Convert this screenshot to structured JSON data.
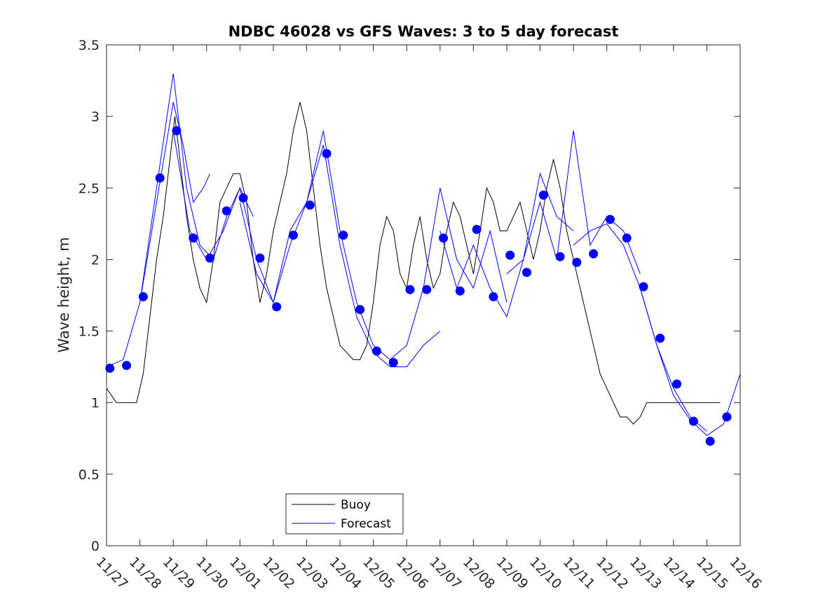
{
  "chart_data": {
    "type": "line",
    "title": "NDBC 46028 vs GFS Waves: 3 to 5 day forecast",
    "xlabel": "",
    "ylabel": "Wave height, m",
    "xlim": [
      0,
      19
    ],
    "ylim": [
      0,
      3.5
    ],
    "yticks": [
      0,
      0.5,
      1,
      1.5,
      2,
      2.5,
      3,
      3.5
    ],
    "ytick_labels": [
      "0",
      "0.5",
      "1",
      "1.5",
      "2",
      "2.5",
      "3",
      "3.5"
    ],
    "xticks": [
      0,
      1,
      2,
      3,
      4,
      5,
      6,
      7,
      8,
      9,
      10,
      11,
      12,
      13,
      14,
      15,
      16,
      17,
      18,
      19
    ],
    "xtick_labels": [
      "11/27",
      "11/28",
      "11/29",
      "11/30",
      "12/01",
      "12/02",
      "12/03",
      "12/04",
      "12/05",
      "12/06",
      "12/07",
      "12/08",
      "12/09",
      "12/10",
      "12/11",
      "12/12",
      "12/13",
      "12/14",
      "12/15",
      "12/16"
    ],
    "legend": {
      "position": "bottom-center",
      "entries": [
        {
          "label": "Buoy",
          "color": "#000000"
        },
        {
          "label": "Forecast",
          "color": "#0000ff"
        }
      ]
    },
    "colors": {
      "buoy": "#000000",
      "forecast": "#0000ff",
      "markers": "#0000ff"
    },
    "series": [
      {
        "name": "Buoy",
        "x": [
          0,
          0.3,
          0.6,
          0.9,
          1.1,
          1.3,
          1.5,
          1.7,
          1.9,
          2.05,
          2.2,
          2.4,
          2.6,
          2.8,
          3.0,
          3.2,
          3.4,
          3.6,
          3.8,
          4.0,
          4.2,
          4.4,
          4.6,
          4.8,
          5.0,
          5.2,
          5.4,
          5.6,
          5.8,
          6.0,
          6.2,
          6.4,
          6.6,
          6.8,
          7.0,
          7.2,
          7.4,
          7.6,
          7.8,
          8.0,
          8.2,
          8.4,
          8.6,
          8.8,
          9.0,
          9.2,
          9.4,
          9.6,
          9.8,
          10.0,
          10.2,
          10.4,
          10.6,
          10.8,
          11.0,
          11.2,
          11.4,
          11.6,
          11.8,
          12.0,
          12.2,
          12.4,
          12.6,
          12.8,
          13.0,
          13.2,
          13.4,
          13.6,
          13.8,
          14.0,
          14.2,
          14.4,
          14.6,
          14.8,
          15.0,
          15.2,
          15.4,
          15.6,
          15.8,
          16.0,
          16.2,
          16.4,
          16.6,
          16.8,
          17.0,
          17.2,
          17.4,
          17.6,
          17.8,
          18.0,
          18.2,
          18.4
        ],
        "y": [
          1.1,
          1.0,
          1.0,
          1.0,
          1.2,
          1.6,
          2.0,
          2.3,
          2.7,
          3.0,
          2.7,
          2.3,
          2.0,
          1.8,
          1.7,
          2.0,
          2.4,
          2.5,
          2.6,
          2.6,
          2.4,
          2.0,
          1.7,
          1.9,
          2.2,
          2.4,
          2.6,
          2.9,
          3.1,
          2.9,
          2.5,
          2.1,
          1.8,
          1.6,
          1.4,
          1.35,
          1.3,
          1.3,
          1.4,
          1.7,
          2.1,
          2.3,
          2.2,
          1.9,
          1.8,
          2.1,
          2.3,
          2.0,
          1.8,
          1.9,
          2.2,
          2.4,
          2.3,
          2.1,
          1.9,
          2.2,
          2.5,
          2.4,
          2.2,
          2.2,
          2.3,
          2.4,
          2.2,
          2.0,
          2.2,
          2.5,
          2.7,
          2.5,
          2.2,
          2.0,
          1.8,
          1.6,
          1.4,
          1.2,
          1.1,
          1.0,
          0.9,
          0.9,
          0.85,
          0.9,
          1.0,
          1.0,
          1.0,
          1.0,
          1.0,
          1.0,
          1.0,
          1.0,
          1.0,
          1.0,
          1.0,
          1.0
        ]
      },
      {
        "name": "Forecast",
        "runs": [
          {
            "x": [
              0,
              0.5,
              1.0,
              1.5,
              2.0,
              2.3,
              2.6,
              2.9,
              3.1
            ],
            "y": [
              1.25,
              1.3,
              1.7,
              2.4,
              3.1,
              2.8,
              2.4,
              2.5,
              2.6
            ]
          },
          {
            "x": [
              1.0,
              1.5,
              2.0,
              2.4,
              2.8,
              3.2,
              3.6,
              4.0,
              4.4
            ],
            "y": [
              1.7,
              2.5,
              3.3,
              2.5,
              2.1,
              2.0,
              2.3,
              2.5,
              2.3
            ]
          },
          {
            "x": [
              2.0,
              2.5,
              3.0,
              3.5,
              4.0,
              4.5,
              5.0,
              5.5,
              6.0
            ],
            "y": [
              2.9,
              2.2,
              2.0,
              2.2,
              2.5,
              2.0,
              1.7,
              2.1,
              2.4
            ]
          },
          {
            "x": [
              4.0,
              4.5,
              5.0,
              5.5,
              6.0,
              6.5,
              7.0,
              7.5,
              8.0
            ],
            "y": [
              2.4,
              1.9,
              1.7,
              2.2,
              2.4,
              2.9,
              2.2,
              1.7,
              1.4
            ]
          },
          {
            "x": [
              6.0,
              6.5,
              7.0,
              7.5,
              8.0,
              8.5,
              9.0,
              9.5,
              10.0
            ],
            "y": [
              2.4,
              2.8,
              2.1,
              1.6,
              1.35,
              1.25,
              1.25,
              1.4,
              1.5
            ]
          },
          {
            "x": [
              8.0,
              8.5,
              9.0,
              9.5,
              10.0,
              10.5,
              11.0,
              11.5,
              12.0
            ],
            "y": [
              1.4,
              1.3,
              1.4,
              1.8,
              2.5,
              2.0,
              1.8,
              2.2,
              1.7
            ]
          },
          {
            "x": [
              10.0,
              10.5,
              11.0,
              11.5,
              12.0,
              12.5,
              13.0,
              13.5,
              14.0
            ],
            "y": [
              2.2,
              1.8,
              2.1,
              1.8,
              1.6,
              2.0,
              2.6,
              2.3,
              2.2
            ]
          },
          {
            "x": [
              12.0,
              12.5,
              13.0,
              13.5,
              14.0,
              14.5,
              15.0,
              15.5,
              16.0
            ],
            "y": [
              1.9,
              2.0,
              2.4,
              2.0,
              2.9,
              2.1,
              2.3,
              2.2,
              1.9
            ]
          },
          {
            "x": [
              14.0,
              14.5,
              15.0,
              15.5,
              16.0,
              16.5,
              17.0,
              17.5,
              18.0
            ],
            "y": [
              2.1,
              2.2,
              2.25,
              2.1,
              1.8,
              1.4,
              1.1,
              0.9,
              0.8
            ]
          },
          {
            "x": [
              16.0,
              16.5,
              17.0,
              17.5,
              18.0,
              18.5,
              19.0
            ],
            "y": [
              1.8,
              1.4,
              1.05,
              0.88,
              0.77,
              0.85,
              1.2
            ]
          }
        ]
      },
      {
        "name": "Forecast markers",
        "x": [
          0.1,
          0.6,
          1.1,
          1.6,
          2.1,
          2.6,
          3.1,
          3.6,
          4.1,
          4.6,
          5.1,
          5.6,
          6.1,
          6.6,
          7.1,
          7.6,
          8.1,
          8.6,
          9.1,
          9.6,
          10.1,
          10.6,
          11.1,
          11.6,
          12.1,
          12.6,
          13.1,
          13.6,
          14.1,
          14.6,
          15.1,
          15.6,
          16.1,
          16.6,
          17.1,
          17.6,
          18.1,
          18.6
        ],
        "y": [
          1.24,
          1.26,
          1.74,
          2.57,
          2.9,
          2.15,
          2.01,
          2.34,
          2.43,
          2.01,
          1.67,
          2.17,
          2.38,
          2.74,
          2.17,
          1.65,
          1.36,
          1.28,
          1.79,
          1.79,
          2.15,
          1.78,
          2.21,
          1.74,
          2.03,
          1.91,
          2.45,
          2.02,
          1.98,
          2.04,
          2.28,
          2.15,
          1.81,
          1.45,
          1.13,
          0.87,
          0.73,
          0.9
        ]
      }
    ]
  }
}
